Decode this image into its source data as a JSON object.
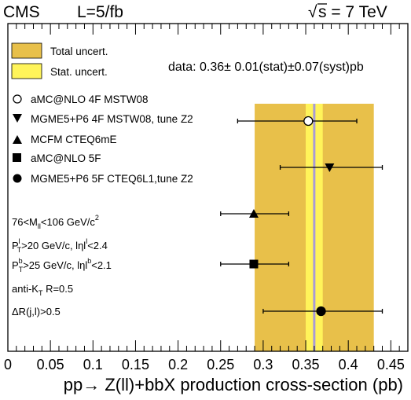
{
  "chart_data": {
    "type": "scatter",
    "header": {
      "experiment": "CMS",
      "luminosity": "L=5/fb",
      "energy": "s = 7 TeV",
      "sqrt_symbol": "√"
    },
    "xlabel": "pp→ Z(ll)+bbX production cross-section (pb)",
    "xlim": [
      0,
      0.47
    ],
    "xticks": [
      "0",
      "0.05",
      "0.1",
      "0.15",
      "0.2",
      "0.25",
      "0.3",
      "0.35",
      "0.4",
      "0.45"
    ],
    "grid": false,
    "data_measurement": {
      "label": "data: 0.36± 0.01(stat)±0.07(syst)pb",
      "central": 0.36,
      "stat_band": [
        0.35,
        0.37
      ],
      "total_band": [
        0.29,
        0.43
      ],
      "line_color": "#a89bd6"
    },
    "bands": [
      {
        "name": "Total uncert.",
        "color": "#e8c04a"
      },
      {
        "name": "Stat. uncert.",
        "color": "#fff45a"
      }
    ],
    "series": [
      {
        "name": "aMC@NLO 4F MSTW08",
        "marker": "circle-open",
        "x": 0.353,
        "xerr": [
          0.27,
          0.41
        ]
      },
      {
        "name": "MGME5+P6 4F MSTW08, tune Z2",
        "marker": "triangle-down",
        "x": 0.378,
        "xerr": [
          0.32,
          0.44
        ]
      },
      {
        "name": "MCFM CTEQ6mE",
        "marker": "triangle-up",
        "x": 0.289,
        "xerr": [
          0.25,
          0.33
        ]
      },
      {
        "name": "aMC@NLO 5F",
        "marker": "square",
        "x": 0.289,
        "xerr": [
          0.25,
          0.33
        ]
      },
      {
        "name": "MGME5+P6 5F CTEQ6L1,tune Z2",
        "marker": "circle",
        "x": 0.368,
        "xerr": [
          0.3,
          0.44
        ]
      }
    ],
    "point_order": [
      "aMC@NLO 4F MSTW08",
      "MGME5+P6 4F MSTW08, tune Z2",
      "MCFM CTEQ6mE",
      "aMC@NLO 5F",
      "MGME5+P6 5F CTEQ6L1,tune Z2"
    ],
    "cuts": {
      "mass": {
        "pre": "76<M",
        "sub": "ll",
        "mid": "<106 GeV/c",
        "sup": "2"
      },
      "lepton_pt": {
        "pre": "P",
        "sub": "T",
        "sup": "l",
        "mid": ">20 GeV/c, lηl",
        "sup2": "l",
        "post": "<2.4"
      },
      "bjet_pt": {
        "pre": "P",
        "sub": "T",
        "sup": "b",
        "mid": ">25 GeV/c, lηl",
        "sup2": "b",
        "post": "<2.1"
      },
      "jet_algo": {
        "pre": "anti-K",
        "sub": "T",
        "post": " R=0.5"
      },
      "delta_r": {
        "text": "ΔR(j,l)>0.5"
      }
    }
  }
}
